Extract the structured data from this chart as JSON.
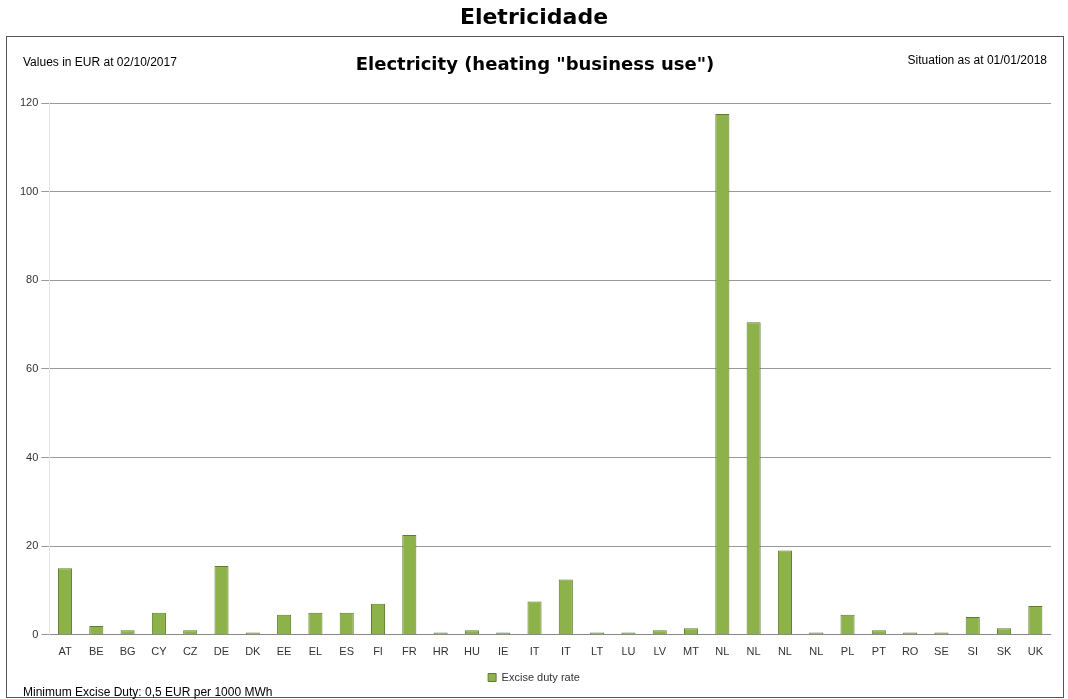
{
  "chart_data": {
    "type": "bar",
    "title": "Eletricidade",
    "subtitle": "Electricity (heating \"business use\")",
    "annotations": [
      "Values in EUR at 02/10/2017",
      "Situation as at 01/01/2018",
      "Minimum Excise Duty: 0,5 EUR per 1000 MWh"
    ],
    "categories": [
      "AT",
      "BE",
      "BG",
      "CY",
      "CZ",
      "DE",
      "DK",
      "EE",
      "EL",
      "ES",
      "FI",
      "FR",
      "HR",
      "HU",
      "IE",
      "IT",
      "IT",
      "LT",
      "LU",
      "LV",
      "MT",
      "NL",
      "NL",
      "NL",
      "NL",
      "PL",
      "PT",
      "RO",
      "SE",
      "SI",
      "SK",
      "UK"
    ],
    "series": [
      {
        "name": "Excise duty rate",
        "color": "#8db24a",
        "values": [
          15,
          2,
          1,
          5,
          1,
          15.5,
          0.5,
          4.5,
          5,
          5,
          7,
          22.5,
          0.5,
          1,
          0.5,
          7.5,
          12.5,
          0.5,
          0.5,
          1,
          1.5,
          117.5,
          70.5,
          19,
          0.5,
          4.5,
          1,
          0.5,
          0.5,
          4,
          1.5,
          6.5
        ]
      }
    ],
    "ylim": [
      0,
      120
    ],
    "yticks": [
      0,
      20,
      40,
      60,
      80,
      100,
      120
    ],
    "grid": "y",
    "legend": "bottom"
  }
}
